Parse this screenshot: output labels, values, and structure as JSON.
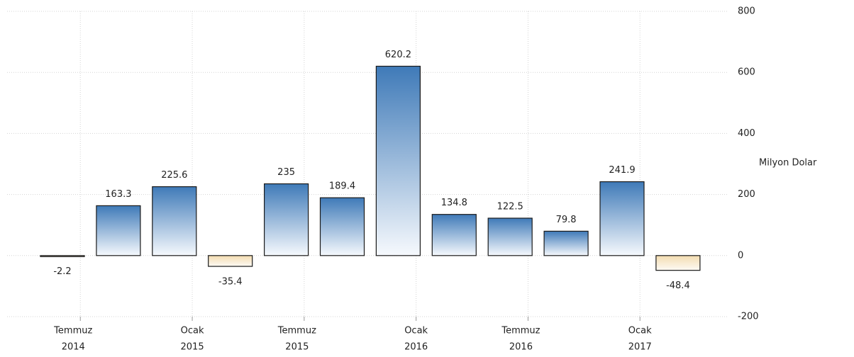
{
  "chart_data": {
    "type": "bar",
    "y_axis_label": "Milyon Dolar",
    "categories": [
      null,
      null,
      null,
      null,
      null,
      null,
      null,
      null,
      null,
      null,
      null,
      null
    ],
    "values": [
      -2.2,
      163.3,
      225.6,
      -35.4,
      235,
      189.4,
      620.2,
      134.8,
      122.5,
      79.8,
      241.9,
      -48.4
    ],
    "positive_color": "#3f7ab8",
    "negative_color": "#f3dcb0",
    "ylim": [
      -200,
      800
    ],
    "yticks": [
      -200,
      0,
      200,
      400,
      600,
      800
    ],
    "xtick_labels": [
      [
        "Temmuz",
        "2014"
      ],
      [
        "Ocak",
        "2015"
      ],
      [
        "Temmuz",
        "2015"
      ],
      [
        "Ocak",
        "2016"
      ],
      [
        "Temmuz",
        "2016"
      ],
      [
        "Ocak",
        "2017"
      ]
    ],
    "grid": true
  }
}
